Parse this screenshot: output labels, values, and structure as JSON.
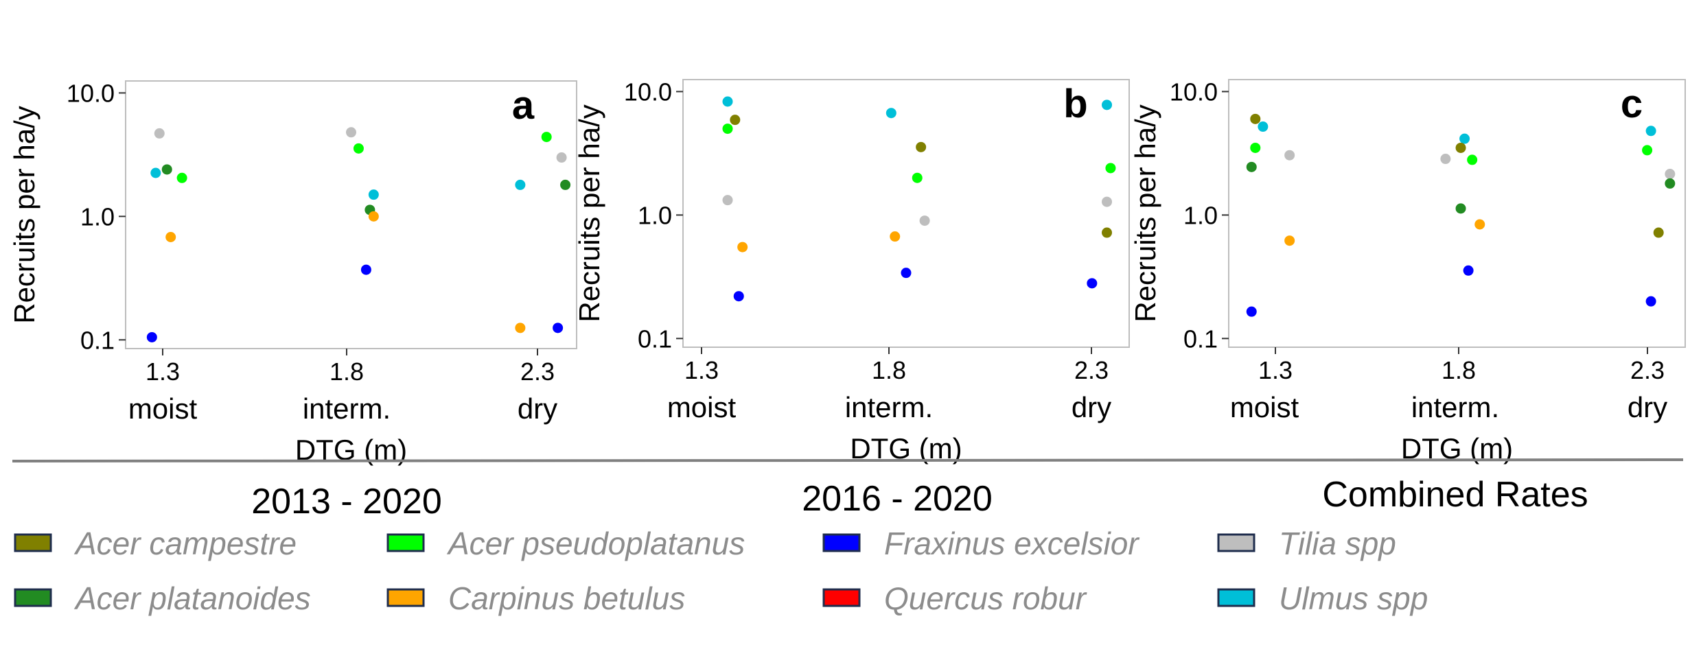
{
  "chart_data": [
    {
      "type": "scatter",
      "panel_label": "a",
      "ylabel": "Recruits per ha/y",
      "xlabel": "DTG (m)",
      "y_scale": "log",
      "ylim": [
        0.085,
        12.5
      ],
      "y_ticks": [
        "10.0",
        "1.0",
        "0.1"
      ],
      "x_ticks": [
        "1.3",
        "1.8",
        "2.3"
      ],
      "x_categories": [
        "moist",
        "interm.",
        "dry"
      ],
      "grid": false,
      "points": [
        {
          "species": "Tilia spp",
          "x": 1.27,
          "y": 4.7
        },
        {
          "species": "Ulmus spp",
          "x": 1.26,
          "y": 2.25
        },
        {
          "species": "Acer platanoides",
          "x": 1.29,
          "y": 2.4
        },
        {
          "species": "Acer pseudoplatanus",
          "x": 1.33,
          "y": 2.05
        },
        {
          "species": "Carpinus betulus",
          "x": 1.3,
          "y": 0.68
        },
        {
          "species": "Fraxinus excelsior",
          "x": 1.25,
          "y": 0.105
        },
        {
          "species": "Tilia spp",
          "x": 1.78,
          "y": 4.8
        },
        {
          "species": "Acer pseudoplatanus",
          "x": 1.8,
          "y": 3.55
        },
        {
          "species": "Ulmus spp",
          "x": 1.84,
          "y": 1.5
        },
        {
          "species": "Acer platanoides",
          "x": 1.83,
          "y": 1.13
        },
        {
          "species": "Carpinus betulus",
          "x": 1.84,
          "y": 1.0
        },
        {
          "species": "Fraxinus excelsior",
          "x": 1.82,
          "y": 0.37
        },
        {
          "species": "Acer pseudoplatanus",
          "x": 2.3,
          "y": 4.4
        },
        {
          "species": "Tilia spp",
          "x": 2.34,
          "y": 3.0
        },
        {
          "species": "Ulmus spp",
          "x": 2.23,
          "y": 1.8
        },
        {
          "species": "Acer platanoides",
          "x": 2.35,
          "y": 1.8
        },
        {
          "species": "Carpinus betulus",
          "x": 2.23,
          "y": 0.125
        },
        {
          "species": "Fraxinus excelsior",
          "x": 2.33,
          "y": 0.125
        }
      ]
    },
    {
      "type": "scatter",
      "panel_label": "b",
      "ylabel": "Recruits per ha/y",
      "xlabel": "DTG (m)",
      "y_scale": "log",
      "ylim": [
        0.085,
        12.5
      ],
      "y_ticks": [
        "10.0",
        "1.0",
        "0.1"
      ],
      "x_ticks": [
        "1.3",
        "1.8",
        "2.3"
      ],
      "x_categories": [
        "moist",
        "interm.",
        "dry"
      ],
      "grid": false,
      "points": [
        {
          "species": "Ulmus spp",
          "x": 1.3,
          "y": 8.3
        },
        {
          "species": "Acer campestre",
          "x": 1.32,
          "y": 5.9
        },
        {
          "species": "Acer pseudoplatanus",
          "x": 1.3,
          "y": 5.0
        },
        {
          "species": "Tilia spp",
          "x": 1.3,
          "y": 1.32
        },
        {
          "species": "Carpinus betulus",
          "x": 1.34,
          "y": 0.55
        },
        {
          "species": "Fraxinus excelsior",
          "x": 1.33,
          "y": 0.22
        },
        {
          "species": "Ulmus spp",
          "x": 1.74,
          "y": 6.7
        },
        {
          "species": "Acer campestre",
          "x": 1.82,
          "y": 3.55
        },
        {
          "species": "Acer pseudoplatanus",
          "x": 1.81,
          "y": 2.0
        },
        {
          "species": "Tilia spp",
          "x": 1.83,
          "y": 0.9
        },
        {
          "species": "Carpinus betulus",
          "x": 1.75,
          "y": 0.67
        },
        {
          "species": "Fraxinus excelsior",
          "x": 1.78,
          "y": 0.34
        },
        {
          "species": "Ulmus spp",
          "x": 2.32,
          "y": 7.8
        },
        {
          "species": "Acer pseudoplatanus",
          "x": 2.33,
          "y": 2.4
        },
        {
          "species": "Tilia spp",
          "x": 2.32,
          "y": 1.28
        },
        {
          "species": "Acer campestre",
          "x": 2.32,
          "y": 0.72
        },
        {
          "species": "Fraxinus excelsior",
          "x": 2.28,
          "y": 0.28
        }
      ]
    },
    {
      "type": "scatter",
      "panel_label": "c",
      "ylabel": "Recruits per ha/y",
      "xlabel": "DTG (m)",
      "y_scale": "log",
      "ylim": [
        0.085,
        12.5
      ],
      "y_ticks": [
        "10.0",
        "1.0",
        "0.1"
      ],
      "x_ticks": [
        "1.3",
        "1.8",
        "2.3"
      ],
      "x_categories": [
        "moist",
        "interm.",
        "dry"
      ],
      "grid": false,
      "points": [
        {
          "species": "Acer campestre",
          "x": 1.25,
          "y": 6.0
        },
        {
          "species": "Ulmus spp",
          "x": 1.27,
          "y": 5.2
        },
        {
          "species": "Acer pseudoplatanus",
          "x": 1.25,
          "y": 3.5
        },
        {
          "species": "Tilia spp",
          "x": 1.34,
          "y": 3.05
        },
        {
          "species": "Acer platanoides",
          "x": 1.24,
          "y": 2.45
        },
        {
          "species": "Carpinus betulus",
          "x": 1.34,
          "y": 0.62
        },
        {
          "species": "Fraxinus excelsior",
          "x": 1.24,
          "y": 0.165
        },
        {
          "species": "Ulmus spp",
          "x": 1.8,
          "y": 4.15
        },
        {
          "species": "Acer campestre",
          "x": 1.79,
          "y": 3.5
        },
        {
          "species": "Tilia spp",
          "x": 1.75,
          "y": 2.85
        },
        {
          "species": "Acer pseudoplatanus",
          "x": 1.82,
          "y": 2.8
        },
        {
          "species": "Acer platanoides",
          "x": 1.79,
          "y": 1.13
        },
        {
          "species": "Carpinus betulus",
          "x": 1.84,
          "y": 0.84
        },
        {
          "species": "Fraxinus excelsior",
          "x": 1.81,
          "y": 0.355
        },
        {
          "species": "Ulmus spp",
          "x": 2.29,
          "y": 4.8
        },
        {
          "species": "Acer pseudoplatanus",
          "x": 2.28,
          "y": 3.35
        },
        {
          "species": "Tilia spp",
          "x": 2.34,
          "y": 2.15
        },
        {
          "species": "Acer platanoides",
          "x": 2.34,
          "y": 1.8
        },
        {
          "species": "Acer campestre",
          "x": 2.31,
          "y": 0.72
        },
        {
          "species": "Fraxinus excelsior",
          "x": 2.29,
          "y": 0.2
        }
      ]
    }
  ],
  "periods": [
    "2013 - 2020",
    "2016 - 2020",
    "Combined Rates"
  ],
  "legend": [
    {
      "label": "Acer campestre",
      "color": "#808000"
    },
    {
      "label": "Acer platanoides",
      "color": "#228B22"
    },
    {
      "label": "Acer pseudoplatanus",
      "color": "#00FF00"
    },
    {
      "label": "Carpinus betulus",
      "color": "#FFA500"
    },
    {
      "label": "Fraxinus excelsior",
      "color": "#0000FF"
    },
    {
      "label": "Quercus robur",
      "color": "#FF0000"
    },
    {
      "label": "Tilia spp",
      "color": "#BEBEBE"
    },
    {
      "label": "Ulmus spp",
      "color": "#00BFD8"
    }
  ]
}
